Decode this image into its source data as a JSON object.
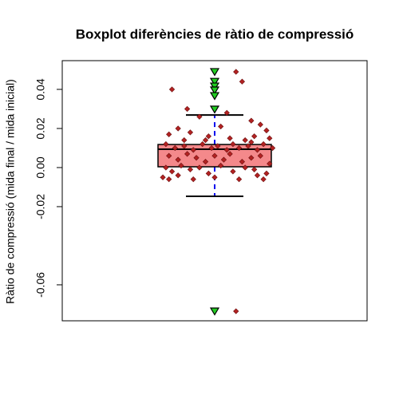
{
  "chart_data": {
    "type": "box",
    "title": "Boxplot diferències de ràtio de compressió",
    "y_label": "Ràtio de compressió (mida final / mida inicial)",
    "xlim": [
      0.5,
      1.5
    ],
    "ylim": [
      -0.0784,
      0.0547
    ],
    "yticks": [
      {
        "value": -0.06,
        "label": "-0.06"
      },
      {
        "value": -0.02,
        "label": "-0.02"
      },
      {
        "value": 0,
        "label": "0.00"
      },
      {
        "value": 0.02,
        "label": "0.02"
      },
      {
        "value": 0.04,
        "label": "0.04"
      }
    ],
    "box": {
      "whisker_low": -0.0147,
      "q1": 0.0004,
      "median": 0.0094,
      "q3": 0.0118,
      "whisker_high": 0.0269,
      "color": "#f4898b",
      "whisker_color": "#0000ee"
    },
    "outliers": {
      "color": "#22cc22",
      "values": [
        0.049,
        0.044,
        0.0416,
        0.0396,
        0.0367,
        0.0298,
        -0.0735
      ]
    },
    "points": {
      "color": "#b22222",
      "x": [
        0.86,
        0.91,
        0.95,
        1.07,
        1.09,
        1.07,
        1.04,
        1.12,
        1.15,
        1.17,
        0.88,
        0.85,
        0.92,
        0.98,
        1.02,
        1.1,
        1.13,
        1.18,
        0.84,
        0.87,
        0.9,
        0.93,
        0.96,
        0.99,
        1.01,
        1.04,
        1.06,
        1.08,
        1.11,
        1.14,
        1.16,
        1.19,
        0.85,
        0.88,
        0.91,
        0.94,
        0.97,
        1.0,
        1.03,
        1.05,
        1.09,
        1.12,
        1.15,
        1.18,
        0.84,
        0.86,
        0.89,
        0.92,
        0.95,
        0.98,
        1.02,
        1.06,
        1.1,
        1.13,
        1.17,
        0.83,
        0.85,
        0.88,
        0.93,
        1.0,
        1.08,
        1.14,
        1.16,
        0.97,
        1.05,
        0.9,
        1.12
      ],
      "values": [
        0.04,
        0.03,
        0.026,
        0.049,
        0.044,
        -0.0735,
        0.028,
        0.024,
        0.022,
        0.019,
        0.02,
        0.017,
        0.018,
        0.016,
        0.021,
        0.014,
        0.016,
        0.015,
        0.012,
        0.01,
        0.011,
        0.009,
        0.012,
        0.01,
        0.011,
        0.009,
        0.012,
        0.01,
        0.011,
        0.009,
        0.012,
        0.01,
        0.006,
        0.004,
        0.007,
        0.005,
        0.003,
        0.006,
        0.004,
        0.007,
        0.003,
        0.005,
        0.006,
        0.002,
        0.0,
        -0.002,
        0.001,
        -0.001,
        0.0,
        -0.003,
        0.001,
        -0.002,
        0.0,
        -0.001,
        -0.003,
        -0.005,
        -0.006,
        -0.004,
        -0.006,
        -0.005,
        -0.006,
        -0.004,
        -0.006,
        0.014,
        0.015,
        0.014,
        0.013
      ]
    }
  }
}
